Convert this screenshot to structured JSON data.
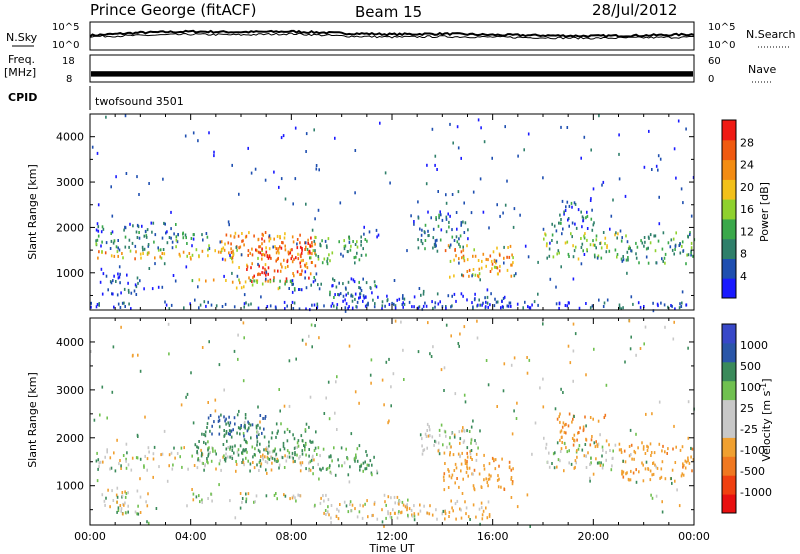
{
  "header": {
    "station": "Prince George (fitACF)",
    "beam": "Beam 15",
    "date": "28/Jul/2012"
  },
  "colors": {
    "power_scale": [
      "#1a1aff",
      "#1f4fb0",
      "#2f7f6a",
      "#3aa84a",
      "#8fd12e",
      "#f2c01a",
      "#f38c12",
      "#f05a10",
      "#ef1a14"
    ],
    "velocity_scale": [
      "#3848c8",
      "#2a56a8",
      "#3a8a5a",
      "#70c050",
      "#c8c8c8",
      "#c8c8c8",
      "#f0a030",
      "#f07820",
      "#f04010",
      "#e81010"
    ]
  },
  "chart_data": [
    {
      "type": "line",
      "panel": "noise",
      "left_label": "N.Sky",
      "right_label": "N.Search",
      "y_left_ticks": [
        "10^5",
        "10^0"
      ],
      "y_right_ticks": [
        "10^5",
        "10^0"
      ],
      "x": [
        0,
        2,
        4,
        6,
        8,
        10,
        12,
        14,
        16,
        18,
        20,
        22,
        24
      ],
      "series": [
        {
          "values": [
            2.6,
            3.1,
            3.3,
            3.2,
            3.3,
            3.0,
            2.8,
            2.9,
            2.7,
            2.6,
            2.5,
            2.6,
            2.8
          ]
        },
        {
          "values": [
            2.4,
            2.6,
            2.8,
            2.7,
            2.9,
            2.5,
            2.3,
            2.4,
            2.3,
            2.2,
            2.1,
            2.2,
            2.3
          ]
        }
      ]
    },
    {
      "type": "area",
      "panel": "frequency",
      "left_label": "Freq.",
      "left_unit": "[MHz]",
      "right_label": "Nave",
      "y_left_ticks": [
        "18",
        "8"
      ],
      "y_right_ticks": [
        "60",
        "0"
      ],
      "band": [
        10.0,
        12.0
      ]
    },
    {
      "type": "table",
      "panel": "cpid",
      "left_label": "CPID",
      "value": "twofsound 3501"
    },
    {
      "type": "heatmap",
      "panel": "power",
      "ylabel": "Slant Range [km]",
      "zlabel": "Power [dB]",
      "xlim": [
        0,
        24
      ],
      "ylim": [
        180,
        4500
      ],
      "y_ticks": [
        "1000",
        "2000",
        "3000",
        "4000"
      ],
      "z_ticks": [
        "4",
        "8",
        "12",
        "16",
        "20",
        "24",
        "28"
      ],
      "zlim": [
        0,
        32
      ],
      "regions": [
        {
          "t0": 0.2,
          "t1": 8.8,
          "r0": 1300,
          "r1": 1500,
          "p": 20
        },
        {
          "t0": 0.2,
          "t1": 5.0,
          "r0": 1500,
          "r1": 1900,
          "p": 10
        },
        {
          "t0": 0.2,
          "t1": 3.5,
          "r0": 1900,
          "r1": 2100,
          "p": 6
        },
        {
          "t0": 5.2,
          "t1": 9.0,
          "r0": 1100,
          "r1": 1900,
          "p": 24
        },
        {
          "t0": 6.2,
          "t1": 8.8,
          "r0": 800,
          "r1": 1600,
          "p": 28
        },
        {
          "t0": 8.5,
          "t1": 11.0,
          "r0": 1200,
          "r1": 1800,
          "p": 12
        },
        {
          "t0": 4.0,
          "t1": 8.0,
          "r0": 650,
          "r1": 850,
          "p": 18
        },
        {
          "t0": 8.0,
          "t1": 11.5,
          "r0": 500,
          "r1": 900,
          "p": 6
        },
        {
          "t0": 9.5,
          "t1": 16.5,
          "r0": 200,
          "r1": 550,
          "p": 5
        },
        {
          "t0": 14.0,
          "t1": 16.8,
          "r0": 900,
          "r1": 1600,
          "p": 22
        },
        {
          "t0": 13.0,
          "t1": 15.0,
          "r0": 1500,
          "r1": 2300,
          "p": 8
        },
        {
          "t0": 18.0,
          "t1": 21.0,
          "r0": 1300,
          "r1": 1900,
          "p": 14
        },
        {
          "t0": 18.5,
          "t1": 20.0,
          "r0": 1900,
          "r1": 2600,
          "p": 7
        },
        {
          "t0": 21.0,
          "t1": 24.0,
          "r0": 1200,
          "r1": 1900,
          "p": 11
        },
        {
          "t0": 0.3,
          "t1": 2.0,
          "r0": 500,
          "r1": 1000,
          "p": 5
        },
        {
          "t0": 0.0,
          "t1": 24.0,
          "r0": 200,
          "r1": 350,
          "p": 4
        }
      ]
    },
    {
      "type": "heatmap",
      "panel": "velocity",
      "ylabel": "Slant Range [km]",
      "zlabel": "Velocity [m s^-1]",
      "xlim": [
        0,
        24
      ],
      "ylim": [
        180,
        4500
      ],
      "y_ticks": [
        "1000",
        "2000",
        "3000",
        "4000"
      ],
      "z_ticks": [
        "1000",
        "500",
        "100",
        "25",
        "-25",
        "-100",
        "-500",
        "-1000"
      ],
      "x_ticks": [
        "00:00",
        "04:00",
        "08:00",
        "12:00",
        "16:00",
        "20:00",
        "00:00"
      ],
      "xlabel": "Time UT",
      "regions": [
        {
          "t0": 0.2,
          "t1": 9.0,
          "r0": 1300,
          "r1": 1800,
          "v": 0
        },
        {
          "t0": 4.0,
          "t1": 9.0,
          "r0": 1500,
          "r1": 2300,
          "v": 200
        },
        {
          "t0": 4.5,
          "t1": 7.0,
          "r0": 2000,
          "r1": 2500,
          "v": 500
        },
        {
          "t0": 8.5,
          "t1": 11.5,
          "r0": 1200,
          "r1": 1800,
          "v": 150
        },
        {
          "t0": 4.0,
          "t1": 8.5,
          "r0": 650,
          "r1": 850,
          "v": 0
        },
        {
          "t0": 9.0,
          "t1": 13.0,
          "r0": 300,
          "r1": 800,
          "v": -60
        },
        {
          "t0": 12.0,
          "t1": 16.0,
          "r0": 300,
          "r1": 700,
          "v": -150
        },
        {
          "t0": 14.0,
          "t1": 16.8,
          "r0": 900,
          "r1": 1700,
          "v": -400
        },
        {
          "t0": 13.0,
          "t1": 15.5,
          "r0": 1600,
          "r1": 2300,
          "v": 0
        },
        {
          "t0": 18.0,
          "t1": 21.0,
          "r0": 1300,
          "r1": 1900,
          "v": 0
        },
        {
          "t0": 18.5,
          "t1": 20.5,
          "r0": 1800,
          "r1": 2500,
          "v": -500
        },
        {
          "t0": 21.0,
          "t1": 24.0,
          "r0": 1100,
          "r1": 1900,
          "v": -400
        },
        {
          "t0": 0.3,
          "t1": 2.0,
          "r0": 400,
          "r1": 1000,
          "v": 0
        }
      ]
    }
  ]
}
